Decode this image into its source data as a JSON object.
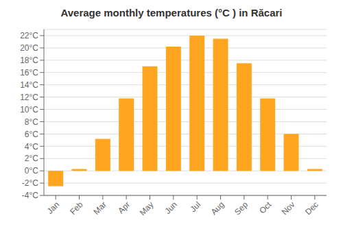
{
  "chart_data": {
    "type": "bar",
    "title": "Average monthly temperatures (°C ) in Răcari",
    "categories": [
      "Jan",
      "Feb",
      "Mar",
      "Apr",
      "May",
      "Jun",
      "Jul",
      "Aug",
      "Sep",
      "Oct",
      "Nov",
      "Dec"
    ],
    "values": [
      -2.5,
      0.3,
      5.2,
      11.8,
      17.0,
      20.2,
      22.0,
      21.5,
      17.5,
      11.8,
      6.0,
      0.3
    ],
    "color": "#FFA520",
    "ylim": [
      -4,
      23
    ],
    "yticks": [
      {
        "value": -4,
        "label": "-4°C"
      },
      {
        "value": -2,
        "label": "-2°C"
      },
      {
        "value": 0,
        "label": "0°C"
      },
      {
        "value": 2,
        "label": "2°C"
      },
      {
        "value": 4,
        "label": "4°C"
      },
      {
        "value": 6,
        "label": "6°C"
      },
      {
        "value": 8,
        "label": "8°C"
      },
      {
        "value": 10,
        "label": "10°C"
      },
      {
        "value": 12,
        "label": "12°C"
      },
      {
        "value": 14,
        "label": "14°C"
      },
      {
        "value": 16,
        "label": "16°C"
      },
      {
        "value": 18,
        "label": "18°C"
      },
      {
        "value": 20,
        "label": "20°C"
      },
      {
        "value": 22,
        "label": "22°C"
      }
    ],
    "grid": true
  }
}
